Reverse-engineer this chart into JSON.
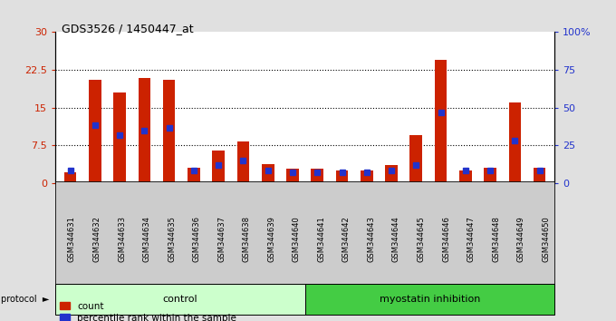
{
  "title": "GDS3526 / 1450447_at",
  "samples": [
    "GSM344631",
    "GSM344632",
    "GSM344633",
    "GSM344634",
    "GSM344635",
    "GSM344636",
    "GSM344637",
    "GSM344638",
    "GSM344639",
    "GSM344640",
    "GSM344641",
    "GSM344642",
    "GSM344643",
    "GSM344644",
    "GSM344645",
    "GSM344646",
    "GSM344647",
    "GSM344648",
    "GSM344649",
    "GSM344650"
  ],
  "count": [
    2.2,
    20.5,
    18.0,
    20.8,
    20.5,
    3.0,
    6.5,
    8.2,
    3.8,
    2.8,
    2.8,
    2.5,
    2.5,
    3.5,
    9.5,
    24.5,
    2.5,
    3.0,
    16.0,
    3.0
  ],
  "percentile": [
    2.5,
    11.5,
    9.5,
    10.5,
    11.0,
    2.5,
    3.5,
    4.5,
    2.5,
    2.2,
    2.2,
    2.2,
    2.2,
    2.5,
    3.5,
    14.0,
    2.5,
    2.5,
    8.5,
    2.5
  ],
  "protocol_groups": [
    {
      "label": "control",
      "start": 0,
      "end": 10,
      "color": "#ccffcc"
    },
    {
      "label": "myostatin inhibition",
      "start": 10,
      "end": 20,
      "color": "#44cc44"
    }
  ],
  "ylim_left": [
    0,
    30
  ],
  "ylim_right": [
    0,
    100
  ],
  "yticks_left": [
    0,
    7.5,
    15,
    22.5,
    30
  ],
  "ytick_labels_left": [
    "0",
    "7.5",
    "15",
    "22.5",
    "30"
  ],
  "yticks_right": [
    0,
    25,
    50,
    75,
    100
  ],
  "ytick_labels_right": [
    "0",
    "25",
    "50",
    "75",
    "100%"
  ],
  "bar_color": "#cc2200",
  "percentile_color": "#2233cc",
  "bar_width": 0.5,
  "bg_color": "#e0e0e0",
  "plot_bg": "#ffffff",
  "xtick_bg_color": "#cccccc",
  "left_tick_color": "#cc2200",
  "right_tick_color": "#2233cc"
}
